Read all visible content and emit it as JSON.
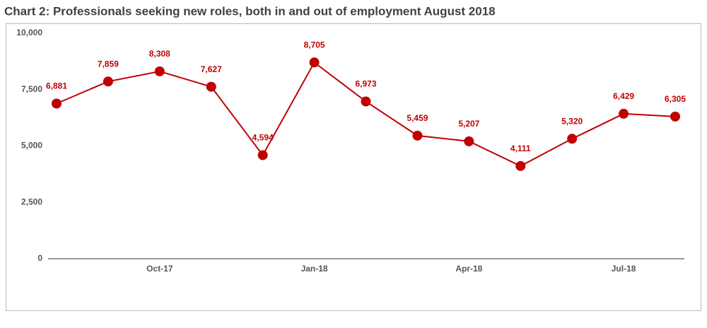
{
  "chart_data": {
    "type": "line",
    "title": "Chart 2: Professionals seeking new roles, both in and out of employment August 2018",
    "categories": [
      null,
      null,
      "Oct-17",
      null,
      null,
      "Jan-18",
      null,
      null,
      "Apr-18",
      null,
      null,
      "Jul-18",
      null
    ],
    "series": [
      {
        "color": "#c00000",
        "values": [
          6881,
          7859,
          8308,
          7627,
          4594,
          8705,
          6973,
          5459,
          5207,
          4111,
          5320,
          6429,
          6305
        ],
        "value_labels": [
          "6,881",
          "7,859",
          "8,308",
          "7,627",
          "4,594",
          "8,705",
          "6,973",
          "5,459",
          "5,207",
          "4,111",
          "5,320",
          "6,429",
          "6,305"
        ]
      }
    ],
    "ylim": [
      0,
      10000
    ],
    "yticks": [
      0,
      {
        "value": 2500,
        "label": "2,500"
      },
      {
        "value": 5000,
        "label": "5,000"
      },
      {
        "value": 7500,
        "label": "7,500"
      },
      {
        "value": 10000,
        "label": "10,000"
      }
    ],
    "grid": false
  }
}
